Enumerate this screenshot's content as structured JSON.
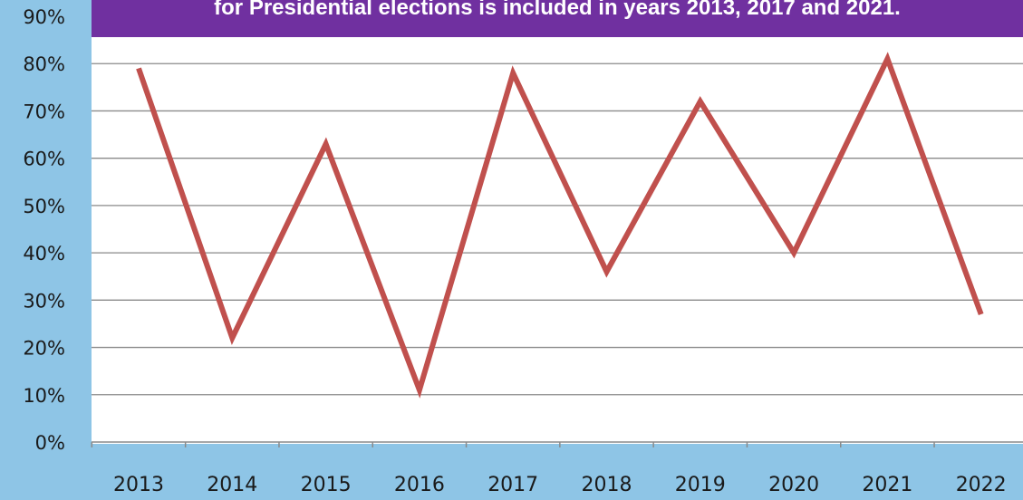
{
  "chart_data": {
    "type": "line",
    "categories": [
      "2013",
      "2014",
      "2015",
      "2016",
      "2017",
      "2018",
      "2019",
      "2020",
      "2021",
      "2022"
    ],
    "series": [
      {
        "values": [
          79,
          22,
          63,
          11,
          78,
          36,
          72,
          40,
          81,
          27
        ],
        "color": "#c0504d"
      }
    ],
    "ylim": [
      0,
      90
    ],
    "yticks": [
      0,
      10,
      20,
      30,
      40,
      50,
      60,
      70,
      80,
      90
    ],
    "ytick_labels": [
      "0%",
      "10%",
      "20%",
      "30%",
      "40%",
      "50%",
      "60%",
      "70%",
      "80%",
      "90%"
    ],
    "grid": true,
    "annotation": "for Presidential elections is included in years 2013, 2017 and 2021."
  },
  "colors": {
    "background": "#8ec5e6",
    "plot_area": "#ffffff",
    "annotation_box": "#7030a0",
    "series": "#c0504d",
    "gridline": "#8a8a8a"
  }
}
